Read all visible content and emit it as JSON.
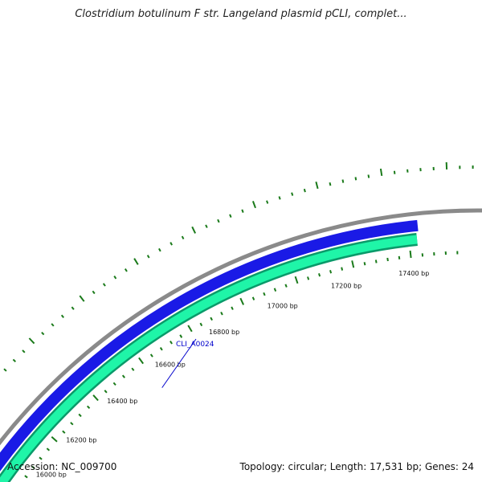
{
  "title": "Clostridium botulinum F str. Langeland plasmid pCLI, complet...",
  "footer": {
    "accession": "Accession: NC_009700",
    "summary": "Topology: circular; Length: 17,531 bp; Genes: 24"
  },
  "colors": {
    "backbone": "#8a8a8a",
    "gene_forward": "#1a1ae6",
    "gene_reverse": "#1ff5a8",
    "gene_reverse_edge": "#0a9a6a",
    "ticks": "#1a7a1a",
    "gene_label": "#0000cc"
  },
  "scale_labels": [
    "16000 bp",
    "16200 bp",
    "16400 bp",
    "16600 bp",
    "16800 bp",
    "17000 bp",
    "17200 bp",
    "17400 bp"
  ],
  "gene_labels": [
    "CLI_A0024"
  ]
}
